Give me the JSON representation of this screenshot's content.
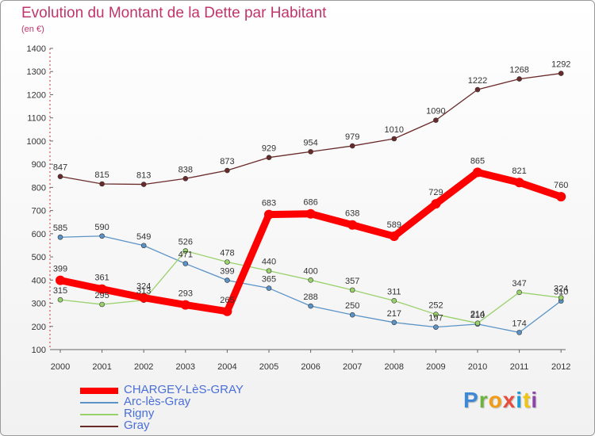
{
  "header": {
    "title": "Evolution du Montant de la Dette par Habitant",
    "subtitle": "(en €)"
  },
  "logo": {
    "text": "Proxiti",
    "colors": [
      "#3e88d6",
      "#6db33f",
      "#f39c12",
      "#e74c3c",
      "#1f9ad6",
      "#f1c40f",
      "#8e44ad"
    ]
  },
  "chart_data": {
    "type": "line",
    "title": "Evolution du Montant de la Dette par Habitant",
    "subtitle": "(en €)",
    "x": [
      2000,
      2001,
      2002,
      2003,
      2004,
      2005,
      2006,
      2007,
      2008,
      2009,
      2010,
      2011,
      2012
    ],
    "ylim": [
      100,
      1400
    ],
    "yticks": [
      100,
      200,
      300,
      400,
      500,
      600,
      700,
      800,
      900,
      1000,
      1100,
      1200,
      1300,
      1400
    ],
    "grid": false,
    "legend": "bottom-left",
    "series": [
      {
        "name": "CHARGEY-LèS-GRAY",
        "color": "#ff0000",
        "values": [
          399,
          361,
          324,
          293,
          265,
          683,
          686,
          638,
          589,
          729,
          865,
          821,
          760
        ]
      },
      {
        "name": "Arc-lès-Gray",
        "color": "#5b93c7",
        "values": [
          585,
          590,
          549,
          471,
          399,
          365,
          288,
          250,
          217,
          197,
          210,
          174,
          310
        ]
      },
      {
        "name": "Rigny",
        "color": "#99d16b",
        "values": [
          315,
          295,
          313,
          526,
          478,
          440,
          400,
          357,
          311,
          252,
          214,
          347,
          324
        ]
      },
      {
        "name": "Gray",
        "color": "#6a2a2a",
        "values": [
          847,
          815,
          813,
          838,
          873,
          929,
          954,
          979,
          1010,
          1090,
          1222,
          1268,
          1292
        ]
      }
    ]
  }
}
